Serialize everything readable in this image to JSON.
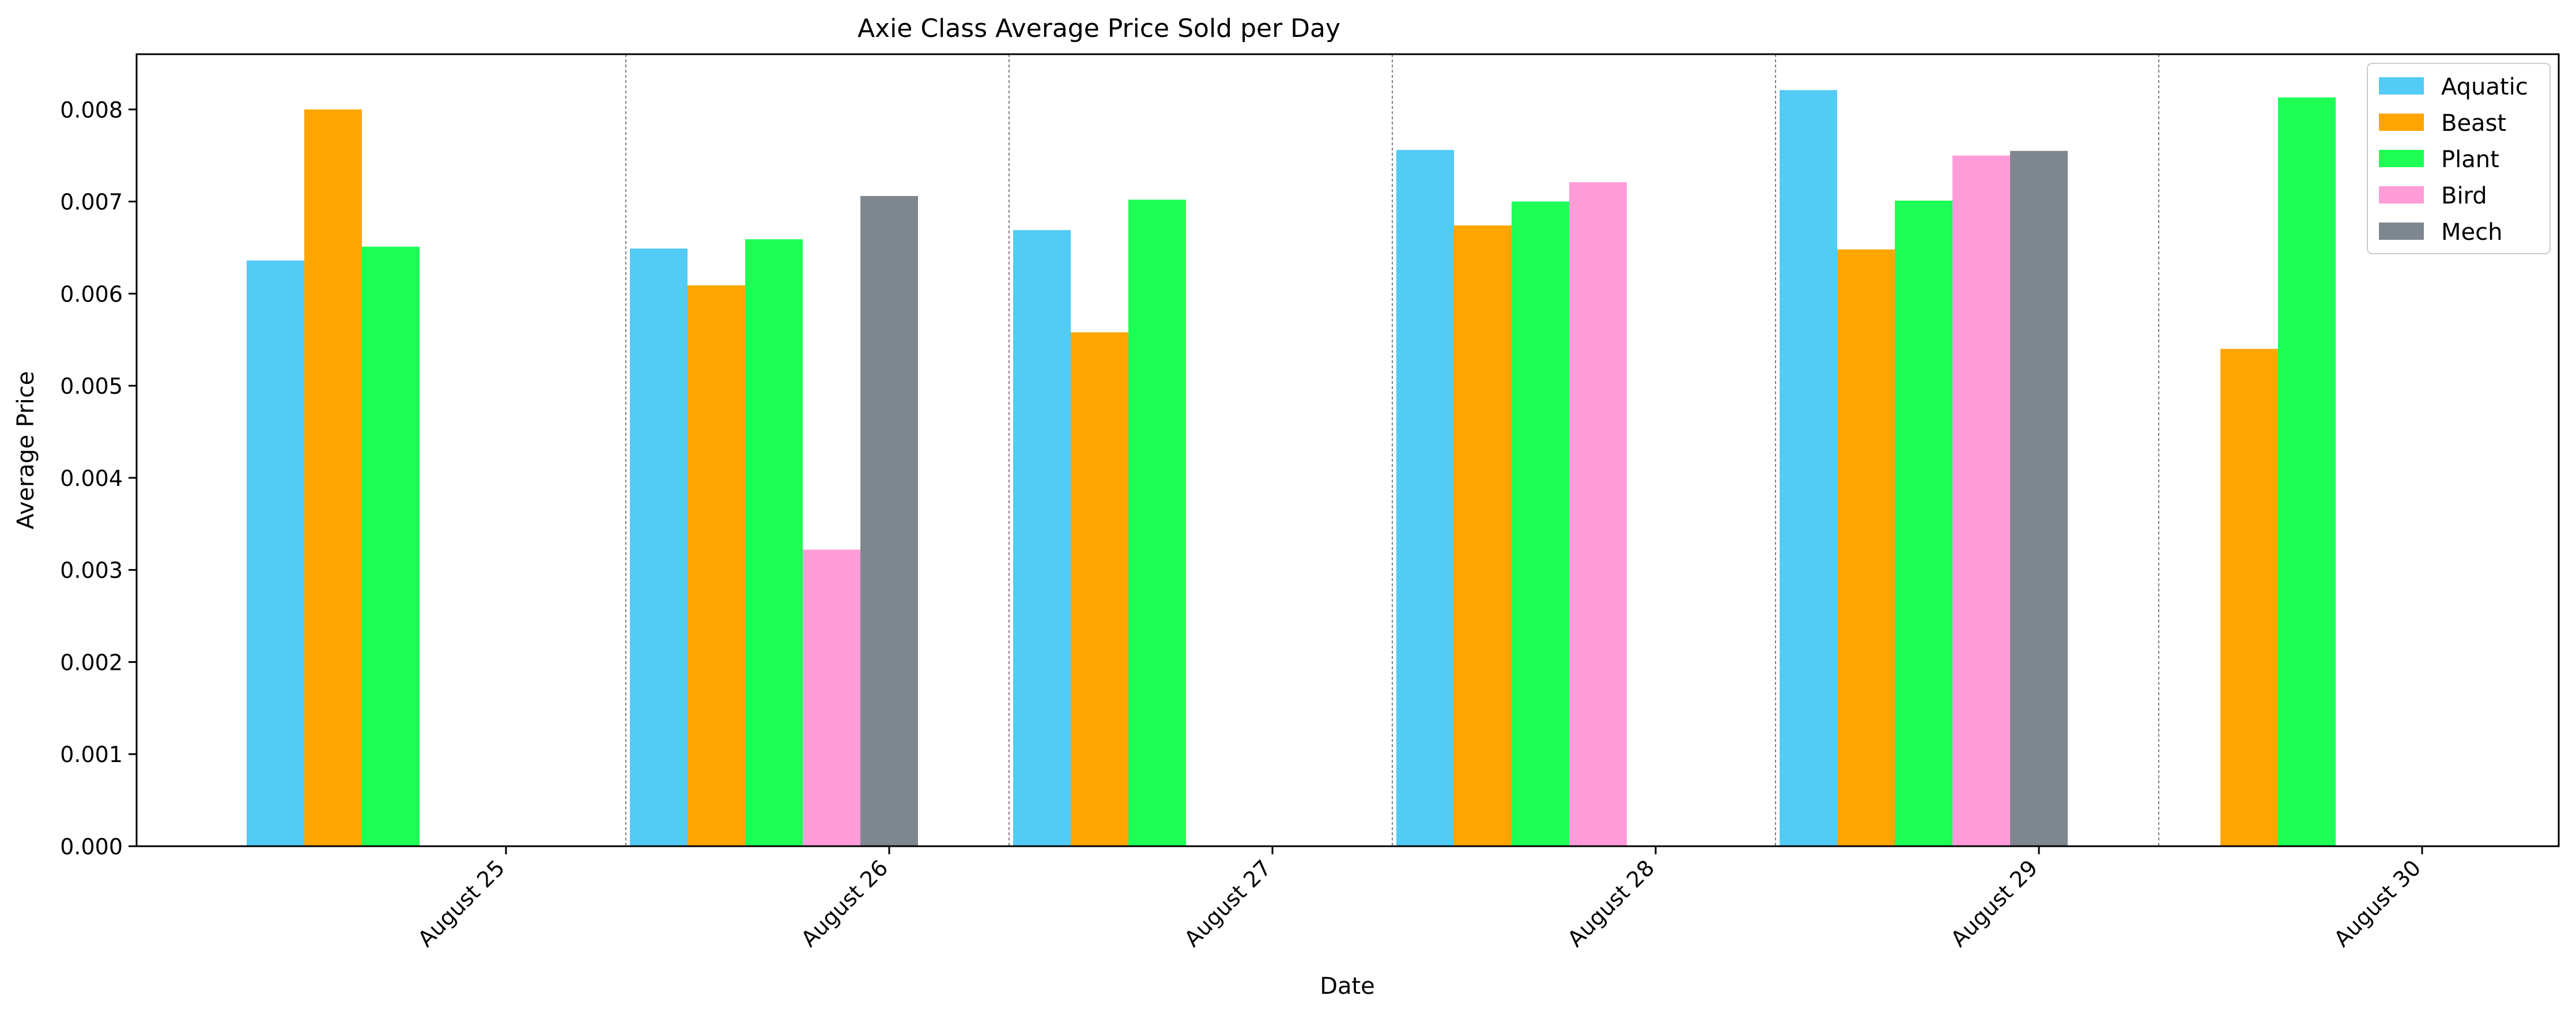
{
  "chart_data": {
    "type": "bar",
    "title": "Axie Class Average Price Sold per Day",
    "xlabel": "Date",
    "ylabel": "Average Price",
    "categories": [
      "August 25",
      "August 26",
      "August 27",
      "August 28",
      "August 29",
      "August 30"
    ],
    "ylim": [
      0,
      0.0086
    ],
    "yticks": [
      "0.000",
      "0.001",
      "0.002",
      "0.003",
      "0.004",
      "0.005",
      "0.006",
      "0.007",
      "0.008"
    ],
    "legend_position": "top-right",
    "day_separators": true,
    "series": [
      {
        "name": "Aquatic",
        "color": "#52cbf5",
        "values": [
          0.00636,
          0.00649,
          0.00669,
          0.00756,
          0.00821,
          null
        ]
      },
      {
        "name": "Beast",
        "color": "#ffa500",
        "values": [
          0.008,
          0.00609,
          0.00558,
          0.00674,
          0.00648,
          0.0054
        ]
      },
      {
        "name": "Plant",
        "color": "#1eff55",
        "values": [
          0.00651,
          0.00659,
          0.00702,
          0.007,
          0.00701,
          0.00813
        ]
      },
      {
        "name": "Bird",
        "color": "#ff9cd9",
        "values": [
          null,
          0.00322,
          null,
          0.00721,
          0.0075,
          null
        ]
      },
      {
        "name": "Mech",
        "color": "#7f878e",
        "values": [
          null,
          0.00706,
          null,
          null,
          0.00755,
          null
        ]
      }
    ]
  }
}
